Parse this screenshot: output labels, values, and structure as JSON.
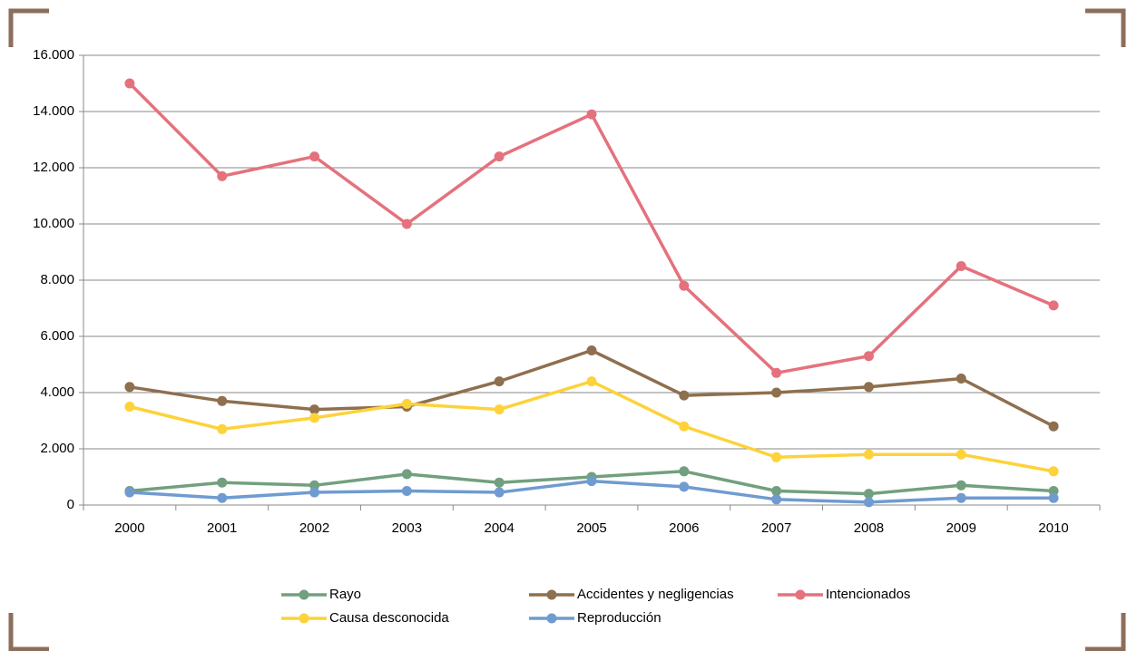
{
  "chart_data": {
    "type": "line",
    "categories": [
      "2000",
      "2001",
      "2002",
      "2003",
      "2004",
      "2005",
      "2006",
      "2007",
      "2008",
      "2009",
      "2010"
    ],
    "series": [
      {
        "name": "Rayo",
        "color": "#72a07e",
        "values": [
          500,
          800,
          700,
          1100,
          800,
          1000,
          1200,
          500,
          400,
          700,
          500
        ]
      },
      {
        "name": "Accidentes y negligencias",
        "color": "#8e6f4e",
        "values": [
          4200,
          3700,
          3400,
          3500,
          4400,
          5500,
          3900,
          4000,
          4200,
          4500,
          2800
        ]
      },
      {
        "name": "Intencionados",
        "color": "#e5717d",
        "values": [
          15000,
          11700,
          12400,
          10000,
          12400,
          13900,
          7800,
          4700,
          5300,
          8500,
          7100
        ]
      },
      {
        "name": "Causa desconocida",
        "color": "#fdd23a",
        "values": [
          3500,
          2700,
          3100,
          3600,
          3400,
          4400,
          2800,
          1700,
          1800,
          1800,
          1200
        ]
      },
      {
        "name": "Reproducción",
        "color": "#6f9bd0",
        "values": [
          450,
          250,
          450,
          500,
          450,
          850,
          650,
          200,
          100,
          250,
          250
        ]
      }
    ],
    "ylim": [
      0,
      16000
    ],
    "yticks": [
      0,
      {
        "value": 2000,
        "label": "2.000"
      },
      {
        "value": 4000,
        "label": "4.000"
      },
      {
        "value": 6000,
        "label": "6.000"
      },
      {
        "value": 8000,
        "label": "8.000"
      },
      {
        "value": 10000,
        "label": "10.000"
      },
      {
        "value": 12000,
        "label": "12.000"
      },
      {
        "value": 14000,
        "label": "14.000"
      },
      {
        "value": 16000,
        "label": "16.000"
      }
    ],
    "grid": true,
    "legend": "bottom"
  }
}
